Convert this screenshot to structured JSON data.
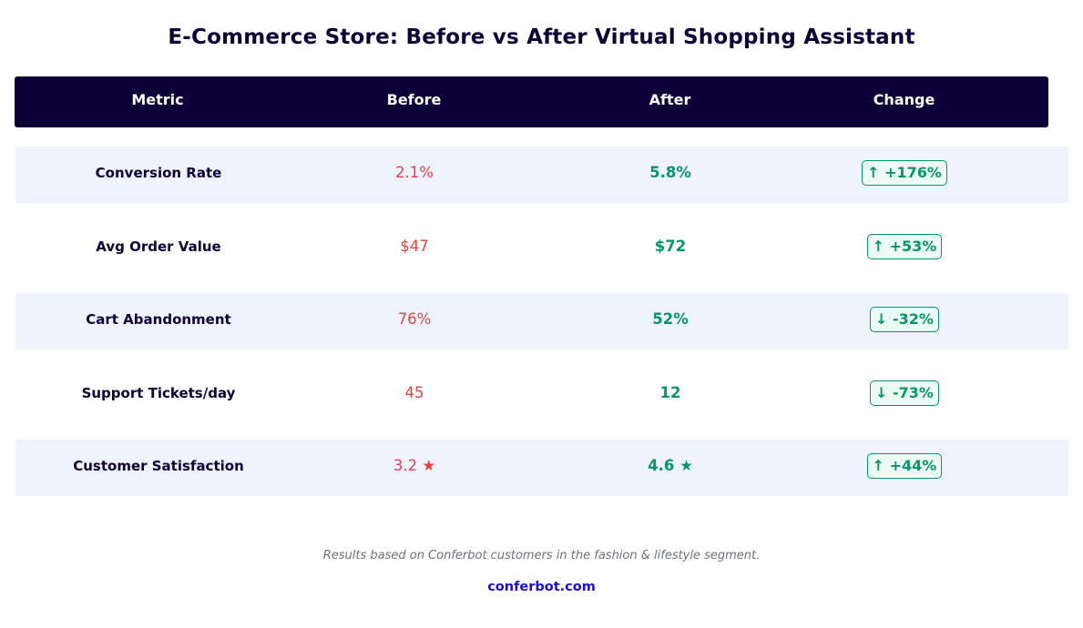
{
  "chart_data": {
    "type": "table",
    "title": "E-Commerce Store: Before vs After Virtual Shopping Assistant",
    "columns": [
      "Metric",
      "Before",
      "After",
      "Change"
    ],
    "rows": [
      {
        "metric": "Conversion Rate",
        "before": "2.1%",
        "after": "5.8%",
        "change": "↑ +176%"
      },
      {
        "metric": "Avg Order Value",
        "before": "$47",
        "after": "$72",
        "change": "↑ +53%"
      },
      {
        "metric": "Cart Abandonment",
        "before": "76%",
        "after": "52%",
        "change": "↓ -32%"
      },
      {
        "metric": "Support Tickets/day",
        "before": "45",
        "after": "12",
        "change": "↓ -73%"
      },
      {
        "metric": "Customer Satisfaction",
        "before": "3.2 ★",
        "after": "4.6 ★",
        "change": "↑ +44%"
      }
    ],
    "footnote": "Results based on Conferbot customers in the fashion & lifestyle segment.",
    "source": "conferbot.com",
    "colors": {
      "header_bg": "#0b0038",
      "header_text": "#ffffff",
      "metric_text": "#0b0038",
      "before_text": "#e8413f",
      "after_text": "#059669",
      "change_border": "#059669",
      "change_bg": "#ecfbf3",
      "row_shade": "#eff3fd",
      "footnote_text": "#6b7280",
      "brand_text": "#1a0fd6"
    }
  }
}
